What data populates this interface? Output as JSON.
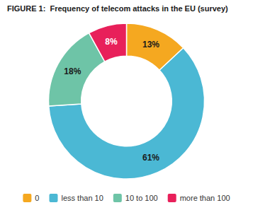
{
  "chart_data": {
    "type": "donut",
    "title": "FIGURE 1:  Frequency of telecom attacks in the EU (survey)",
    "categories": [
      "0",
      "less than 10",
      "10 to 100",
      "more than 100"
    ],
    "values": [
      13,
      61,
      18,
      8
    ],
    "value_labels": [
      "13%",
      "61%",
      "18%",
      "8%"
    ],
    "colors": [
      "#F5A820",
      "#4BB8D4",
      "#6EC4A7",
      "#E8205A"
    ],
    "data_labels": true,
    "legend": "bottom"
  }
}
